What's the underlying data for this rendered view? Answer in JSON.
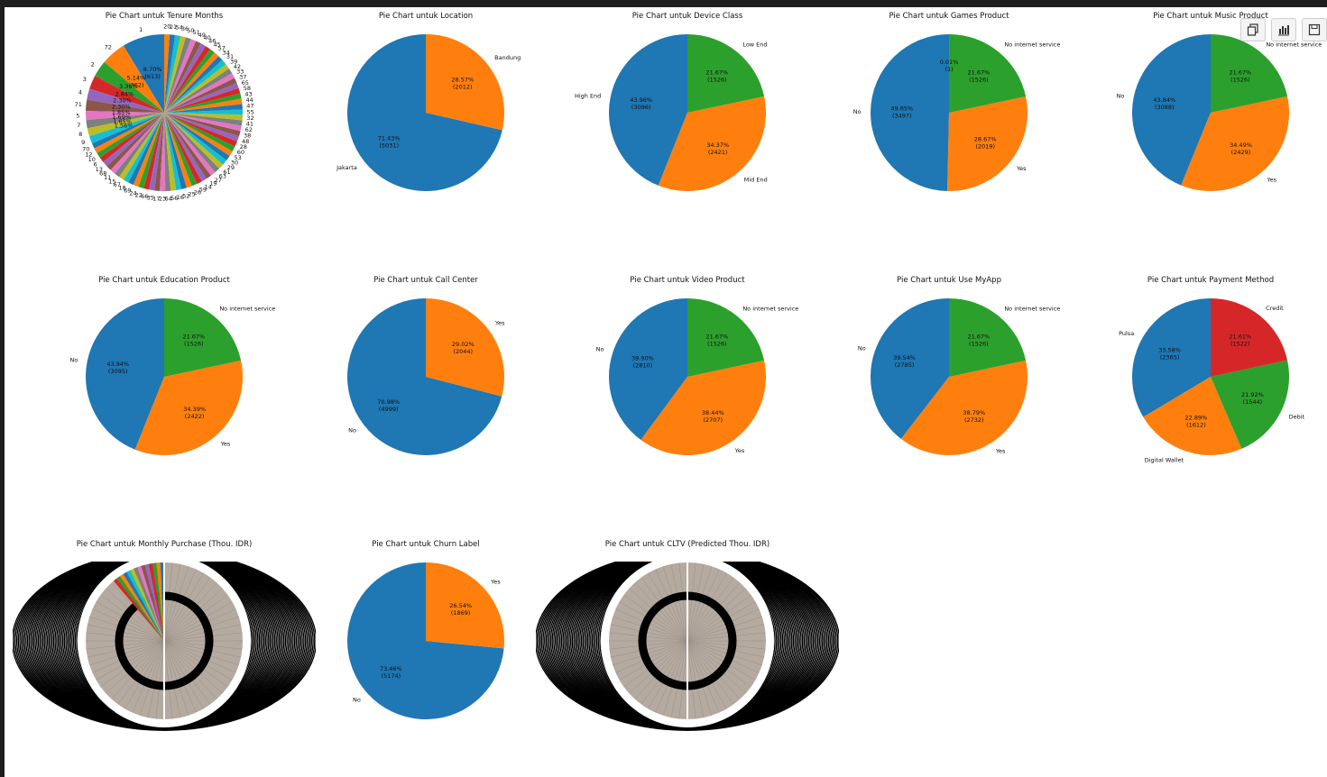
{
  "colors": [
    "#1f77b4",
    "#ff7f0e",
    "#2ca02c",
    "#d62728",
    "#9467bd",
    "#8c564b",
    "#e377c2",
    "#7f7f7f",
    "#bcbd22",
    "#17becf"
  ],
  "toolbar": {
    "icons": [
      "copy-icon",
      "bar-chart-icon",
      "save-icon"
    ]
  },
  "chart_data": [
    {
      "type": "pie",
      "title": "Pie Chart untuk Tenure Months",
      "dense": true,
      "visible_labels": [
        "1",
        "72",
        "2",
        "3",
        "4",
        "71",
        "5",
        "7",
        "8",
        "9",
        "70",
        "12",
        "10",
        "6",
        "13",
        "68",
        "11",
        "15",
        "67",
        "18",
        "69",
        "24",
        "22",
        "66",
        "35",
        "17",
        "23",
        "64",
        "56",
        "16",
        "52",
        "25",
        "26",
        "59",
        "14",
        "19",
        "27",
        "63",
        "61",
        "29",
        "30",
        "53",
        "60",
        "28",
        "48",
        "38",
        "62",
        "41",
        "32",
        "55",
        "47",
        "44",
        "43",
        "58",
        "65",
        "37",
        "33",
        "42",
        "39",
        "31",
        "34",
        "57",
        "45",
        "46",
        "40",
        "49",
        "51",
        "50",
        "36",
        "54",
        "21",
        "20"
      ],
      "visible_pcts": [
        "8.70%\n(613)",
        "5.14%\n(362)",
        "3.38%",
        "2.84%",
        "2.30%",
        "2.30%",
        "1.85%",
        "1.69%",
        "1.65%",
        "1.56%"
      ]
    },
    {
      "type": "pie",
      "title": "Pie Chart untuk Location",
      "slices": [
        {
          "label": "Jakarta",
          "value": 5031,
          "pct": "71.43%"
        },
        {
          "label": "Bandung",
          "value": 2012,
          "pct": "28.57%"
        }
      ]
    },
    {
      "type": "pie",
      "title": "Pie Chart untuk Device Class",
      "slices": [
        {
          "label": "High End",
          "value": 3096,
          "pct": "43.96%"
        },
        {
          "label": "Mid End",
          "value": 2421,
          "pct": "34.37%"
        },
        {
          "label": "Low End",
          "value": 1526,
          "pct": "21.67%"
        }
      ]
    },
    {
      "type": "pie",
      "title": "Pie Chart untuk Games Product",
      "slices": [
        {
          "label": "No",
          "value": 3497,
          "pct": "49.65%"
        },
        {
          "label": "Yes",
          "value": 2019,
          "pct": "28.67%"
        },
        {
          "label": "No internet service",
          "value": 1526,
          "pct": "21.67%"
        },
        {
          "label": "",
          "value": 1,
          "pct": "0.01%"
        }
      ]
    },
    {
      "type": "pie",
      "title": "Pie Chart untuk Music Product",
      "slices": [
        {
          "label": "No",
          "value": 3088,
          "pct": "43.84%"
        },
        {
          "label": "Yes",
          "value": 2429,
          "pct": "34.49%"
        },
        {
          "label": "No internet service",
          "value": 1526,
          "pct": "21.67%"
        }
      ]
    },
    {
      "type": "pie",
      "title": "Pie Chart untuk Education Product",
      "slices": [
        {
          "label": "No",
          "value": 3095,
          "pct": "43.94%"
        },
        {
          "label": "Yes",
          "value": 2422,
          "pct": "34.39%"
        },
        {
          "label": "No internet service",
          "value": 1526,
          "pct": "21.67%"
        }
      ]
    },
    {
      "type": "pie",
      "title": "Pie Chart untuk Call Center",
      "slices": [
        {
          "label": "No",
          "value": 4999,
          "pct": "70.98%"
        },
        {
          "label": "Yes",
          "value": 2044,
          "pct": "29.02%"
        }
      ]
    },
    {
      "type": "pie",
      "title": "Pie Chart untuk Video Product",
      "slices": [
        {
          "label": "No",
          "value": 2810,
          "pct": "39.90%"
        },
        {
          "label": "Yes",
          "value": 2707,
          "pct": "38.44%"
        },
        {
          "label": "No internet service",
          "value": 1526,
          "pct": "21.67%"
        }
      ]
    },
    {
      "type": "pie",
      "title": "Pie Chart untuk Use MyApp",
      "slices": [
        {
          "label": "No",
          "value": 2785,
          "pct": "39.54%"
        },
        {
          "label": "Yes",
          "value": 2732,
          "pct": "38.79%"
        },
        {
          "label": "No internet service",
          "value": 1526,
          "pct": "21.67%"
        }
      ]
    },
    {
      "type": "pie",
      "title": "Pie Chart untuk Payment Method",
      "slices": [
        {
          "label": "Pulsa",
          "value": 2365,
          "pct": "33.58%"
        },
        {
          "label": "Digital Wallet",
          "value": 1612,
          "pct": "22.89%"
        },
        {
          "label": "Debit",
          "value": 1544,
          "pct": "21.92%"
        },
        {
          "label": "Credit",
          "value": 1522,
          "pct": "21.61%"
        }
      ]
    },
    {
      "type": "pie",
      "title": "Pie Chart untuk Monthly Purchase (Thou. IDR)",
      "dense": true,
      "visible_labels": []
    },
    {
      "type": "pie",
      "title": "Pie Chart untuk Churn Label",
      "slices": [
        {
          "label": "No",
          "value": 5174,
          "pct": "73.46%"
        },
        {
          "label": "Yes",
          "value": 1869,
          "pct": "26.54%"
        }
      ]
    },
    {
      "type": "pie",
      "title": "Pie Chart untuk CLTV (Predicted Thou. IDR)",
      "dense": true,
      "visible_labels": []
    }
  ]
}
